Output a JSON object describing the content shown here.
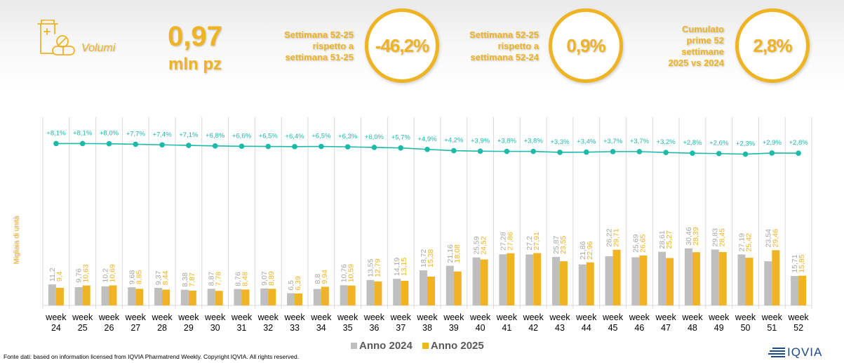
{
  "kpi": {
    "icon": "medicine-bottle-pills-icon",
    "label": "Volumi",
    "value": "0,97",
    "unit": "mln pz"
  },
  "comparisons": [
    {
      "description": [
        "Settimana 52-25",
        "rispetto a",
        "settimana 51-25"
      ],
      "value": "-46,2%"
    },
    {
      "description": [
        "Settimana 52-25",
        "rispetto a",
        "settimana 52-24"
      ],
      "value": "0,9%"
    },
    {
      "description": [
        "Cumulato",
        "prime 52",
        "settimane",
        "2025 vs 2024"
      ],
      "value": "2,8%"
    }
  ],
  "colors": {
    "accent": "#F0B323",
    "series_2024": "#BFBFBF",
    "series_2025": "#F0B323",
    "line": "#1DB9A9",
    "label_2024": "#A6A6A6",
    "grid": "#D9D9D9"
  },
  "chart_data": {
    "type": "bar",
    "ylabel": "Migliaia di unità",
    "categories": [
      "week 24",
      "week 25",
      "week 26",
      "week 27",
      "week 28",
      "week 29",
      "week 30",
      "week 31",
      "week 32",
      "week 33",
      "week 34",
      "week 35",
      "week 36",
      "week 37",
      "week 38",
      "week 39",
      "week 40",
      "week 41",
      "week 42",
      "week 43",
      "week 44",
      "week 45",
      "week 46",
      "week 47",
      "week 48",
      "week 49",
      "week 50",
      "week 51",
      "week 52"
    ],
    "series": [
      {
        "name": "Anno 2024",
        "values": [
          11.2,
          9.76,
          10.2,
          9.68,
          9.37,
          8.38,
          8.87,
          8.76,
          9.07,
          6.5,
          8.8,
          10.76,
          13.55,
          14.19,
          18.72,
          21.16,
          25.59,
          27.28,
          27.2,
          25.87,
          21.86,
          26.22,
          25.69,
          28.61,
          30.46,
          29.83,
          27.19,
          23.54,
          15.71
        ],
        "labels": [
          "11,2",
          "9,76",
          "10,2",
          "9,68",
          "9,37",
          "8,38",
          "8,87",
          "8,76",
          "9,07",
          "6,5",
          "8,8",
          "10,76",
          "13,55",
          "14,19",
          "18,72",
          "21,16",
          "25,59",
          "27,28",
          "27,2",
          "25,87",
          "21,86",
          "26,22",
          "25,69",
          "28,61",
          "30,46",
          "29,83",
          "27,19",
          "23,54",
          "15,71"
        ]
      },
      {
        "name": "Anno 2025",
        "values": [
          9.4,
          10.63,
          10.69,
          8.85,
          8.44,
          7.87,
          7.78,
          8.48,
          8.89,
          6.39,
          9.94,
          10.59,
          12.79,
          13.15,
          15.38,
          18.08,
          24.52,
          27.86,
          27.91,
          23.55,
          22.96,
          29.71,
          26.65,
          25.27,
          28.39,
          28.45,
          25.42,
          29.46,
          15.85
        ],
        "labels": [
          "9,4",
          "10,63",
          "10,69",
          "8,85",
          "8,44",
          "7,87",
          "7,78",
          "8,48",
          "8,89",
          "6,39",
          "9,94",
          "10,59",
          "12,79",
          "13,15",
          "15,38",
          "18,08",
          "24,52",
          "27,86",
          "27,91",
          "23,55",
          "22,96",
          "29,71",
          "26,65",
          "25,27",
          "28,39",
          "28,45",
          "25,42",
          "29,46",
          "15,85"
        ]
      }
    ],
    "cumulative_growth": {
      "name": "Crescita cumulata",
      "type": "line",
      "values": [
        8.1,
        8.1,
        8.0,
        7.7,
        7.4,
        7.1,
        6.8,
        6.6,
        6.5,
        6.4,
        6.5,
        6.3,
        6.0,
        5.7,
        4.9,
        4.2,
        3.9,
        3.8,
        3.8,
        3.3,
        3.4,
        3.7,
        3.7,
        3.2,
        2.8,
        2.6,
        2.3,
        2.9,
        2.8
      ],
      "labels": [
        "+8,1%",
        "+8,1%",
        "+8,0%",
        "+7,7%",
        "+7,4%",
        "+7,1%",
        "+6,8%",
        "+6,6%",
        "+6,5%",
        "+6,4%",
        "+6,5%",
        "+6,3%",
        "+6,0%",
        "+5,7%",
        "+4,9%",
        "+4,2%",
        "+3,9%",
        "+3,8%",
        "+3,8%",
        "+3,3%",
        "+3,4%",
        "+3,7%",
        "+3,7%",
        "+3,2%",
        "+2,8%",
        "+2,6%",
        "+2,3%",
        "+2,9%",
        "+2,8%"
      ]
    },
    "ylim": [
      0,
      35
    ],
    "grid": "vertical category separators",
    "legend": "bottom-center"
  },
  "legend": {
    "items": [
      "Anno 2024",
      "Anno 2025"
    ]
  },
  "footer": {
    "source": "Fonte dati: based on information licensed from IQVIA Pharmatrend Weekly. Copyright IQVIA. All rights reserved.",
    "logo": "IQVIA"
  }
}
